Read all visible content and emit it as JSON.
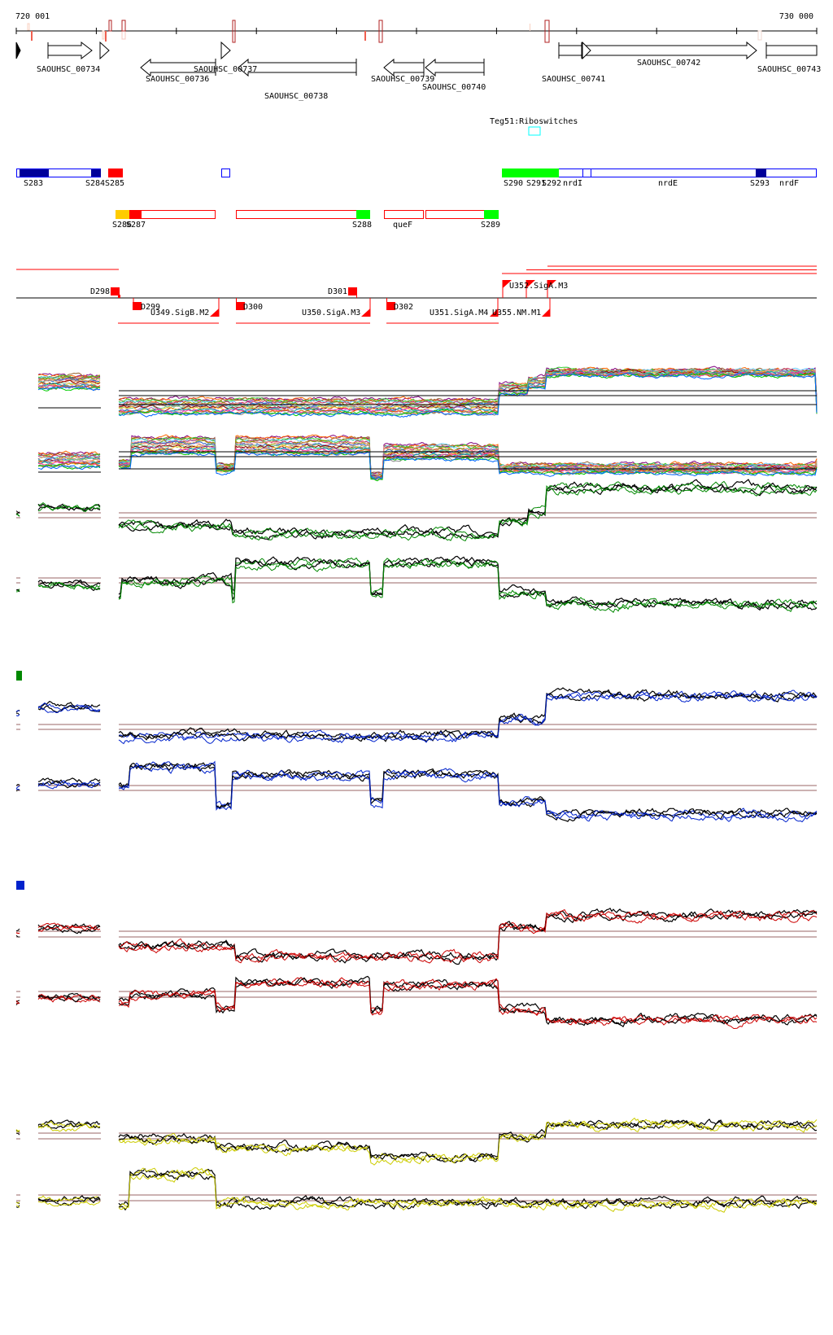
{
  "axis": {
    "start_label": "720 001",
    "end_label": "730 000"
  },
  "genes": [
    {
      "label": "SAOUHSC_00734",
      "strand": "+"
    },
    {
      "label": "SAOUHSC_00736",
      "strand": "-"
    },
    {
      "label": "SAOUHSC_00737",
      "strand": "-"
    },
    {
      "label": "SAOUHSC_00738",
      "strand": "-"
    },
    {
      "label": "SAOUHSC_00739",
      "strand": "-"
    },
    {
      "label": "SAOUHSC_00740",
      "strand": "-"
    },
    {
      "label": "SAOUHSC_00741",
      "strand": "+"
    },
    {
      "label": "SAOUHSC_00742",
      "strand": "+"
    },
    {
      "label": "SAOUHSC_00743",
      "strand": "+"
    }
  ],
  "riboswitch_label": "Teg51:Riboswitches",
  "segments_row1": [
    "S283",
    "S284",
    "S285",
    "S290",
    "S291",
    "S292",
    "nrdI",
    "nrdE",
    "S293",
    "nrdF"
  ],
  "segments_row2": [
    "S286",
    "S287",
    "S288",
    "queF",
    "S289"
  ],
  "promoters": [
    "D298",
    "D299",
    "U349.SigB.M2",
    "D300",
    "D301",
    "U350.SigA.M3",
    "D302",
    "U351.SigA.M4",
    "U355.NM.M1",
    "U352.SigA.M3"
  ],
  "colors": {
    "reference_line": "#9a6464",
    "segment_red": "#ff0000",
    "segment_green": "#00ff00",
    "segment_navy": "#000099",
    "segment_blue": "#0000ff",
    "segment_orange": "#ffcc00",
    "riboswitch": "#00ffff",
    "condition_green": "#008800",
    "condition_blue": "#0022cc",
    "condition_red": "#cc0000",
    "condition_yellow": "#cccc00"
  },
  "legend_swatches": [
    {
      "name": "green-condition",
      "color": "#008800"
    },
    {
      "name": "blue-condition",
      "color": "#0022cc"
    }
  ]
}
